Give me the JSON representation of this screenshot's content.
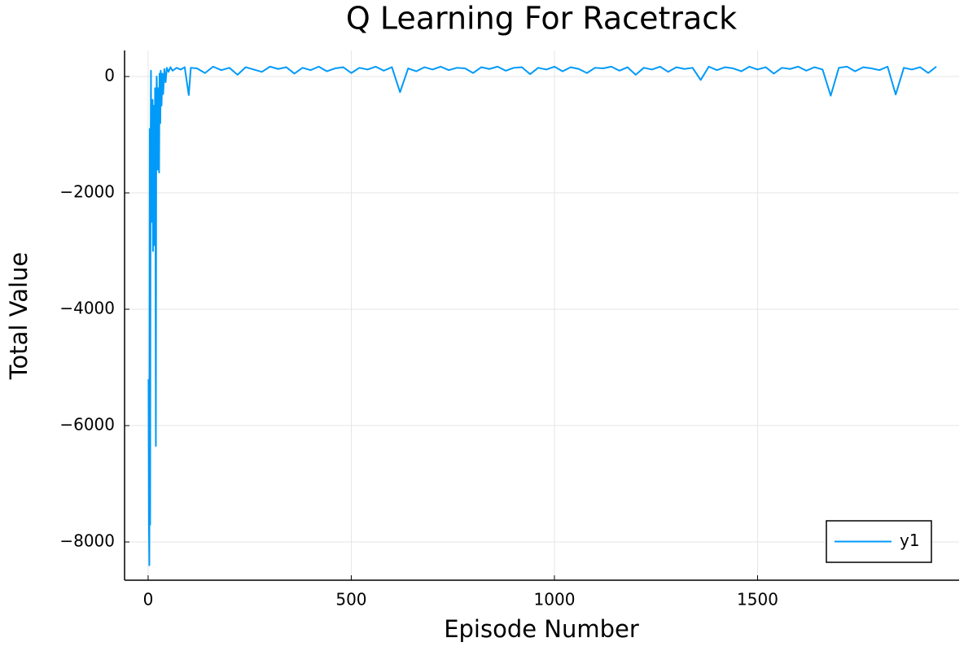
{
  "chart_data": {
    "type": "line",
    "title": "Q Learning For Racetrack",
    "x_label": "Episode Number",
    "y_label": "Total Value",
    "x": [
      1,
      2,
      3,
      4,
      5,
      6,
      7,
      8,
      9,
      10,
      11,
      12,
      13,
      14,
      15,
      16,
      17,
      18,
      19,
      20,
      21,
      22,
      23,
      24,
      25,
      26,
      27,
      28,
      29,
      30,
      31,
      33,
      35,
      37,
      40,
      43,
      46,
      50,
      55,
      60,
      70,
      80,
      90,
      100,
      105,
      120,
      140,
      160,
      180,
      200,
      220,
      240,
      260,
      280,
      300,
      320,
      340,
      360,
      380,
      400,
      420,
      440,
      460,
      480,
      500,
      520,
      540,
      560,
      580,
      600,
      620,
      640,
      660,
      680,
      700,
      720,
      740,
      760,
      780,
      800,
      820,
      840,
      860,
      880,
      900,
      920,
      940,
      960,
      980,
      1000,
      1020,
      1040,
      1060,
      1080,
      1100,
      1120,
      1140,
      1160,
      1180,
      1200,
      1220,
      1240,
      1260,
      1280,
      1300,
      1320,
      1340,
      1360,
      1380,
      1400,
      1420,
      1440,
      1460,
      1480,
      1500,
      1520,
      1540,
      1560,
      1580,
      1600,
      1620,
      1640,
      1660,
      1680,
      1700,
      1720,
      1740,
      1760,
      1780,
      1800,
      1820,
      1840,
      1860,
      1880,
      1900,
      1920,
      1940
    ],
    "series": [
      {
        "name": "y1",
        "color": "#009af9",
        "values": [
          -5200,
          -7700,
          -8400,
          -900,
          -7700,
          -1500,
          100,
          -2500,
          -900,
          -2000,
          -400,
          -3000,
          -1200,
          -2200,
          -500,
          -2900,
          -200,
          -1800,
          -6350,
          -1000,
          0,
          -300,
          -1600,
          -700,
          -200,
          -1000,
          -1650,
          50,
          -400,
          -800,
          100,
          -500,
          50,
          -300,
          130,
          -100,
          150,
          80,
          160,
          100,
          150,
          120,
          160,
          -320,
          150,
          140,
          60,
          170,
          110,
          150,
          30,
          160,
          120,
          80,
          170,
          130,
          160,
          50,
          150,
          110,
          170,
          90,
          140,
          160,
          60,
          150,
          120,
          170,
          100,
          160,
          -270,
          140,
          90,
          160,
          120,
          170,
          110,
          150,
          140,
          60,
          160,
          130,
          170,
          100,
          150,
          160,
          40,
          150,
          120,
          170,
          90,
          160,
          130,
          60,
          150,
          140,
          170,
          100,
          160,
          30,
          150,
          120,
          170,
          80,
          160,
          130,
          150,
          -60,
          170,
          110,
          160,
          140,
          90,
          170,
          120,
          160,
          50,
          150,
          130,
          170,
          100,
          160,
          120,
          -330,
          150,
          170,
          90,
          160,
          140,
          110,
          170,
          -310,
          150,
          120,
          160,
          60,
          170
        ]
      }
    ],
    "xlim": [
      -58,
      1996
    ],
    "ylim": [
      -8657,
      448
    ],
    "xticks": [
      0,
      500,
      1000,
      1500
    ],
    "yticks": [
      {
        "value": -8000,
        "label": "−8000"
      },
      {
        "value": -6000,
        "label": "−6000"
      },
      {
        "value": -4000,
        "label": "−4000"
      },
      {
        "value": -2000,
        "label": "−2000"
      },
      0
    ],
    "grid": true,
    "legend": "bottom-right"
  }
}
